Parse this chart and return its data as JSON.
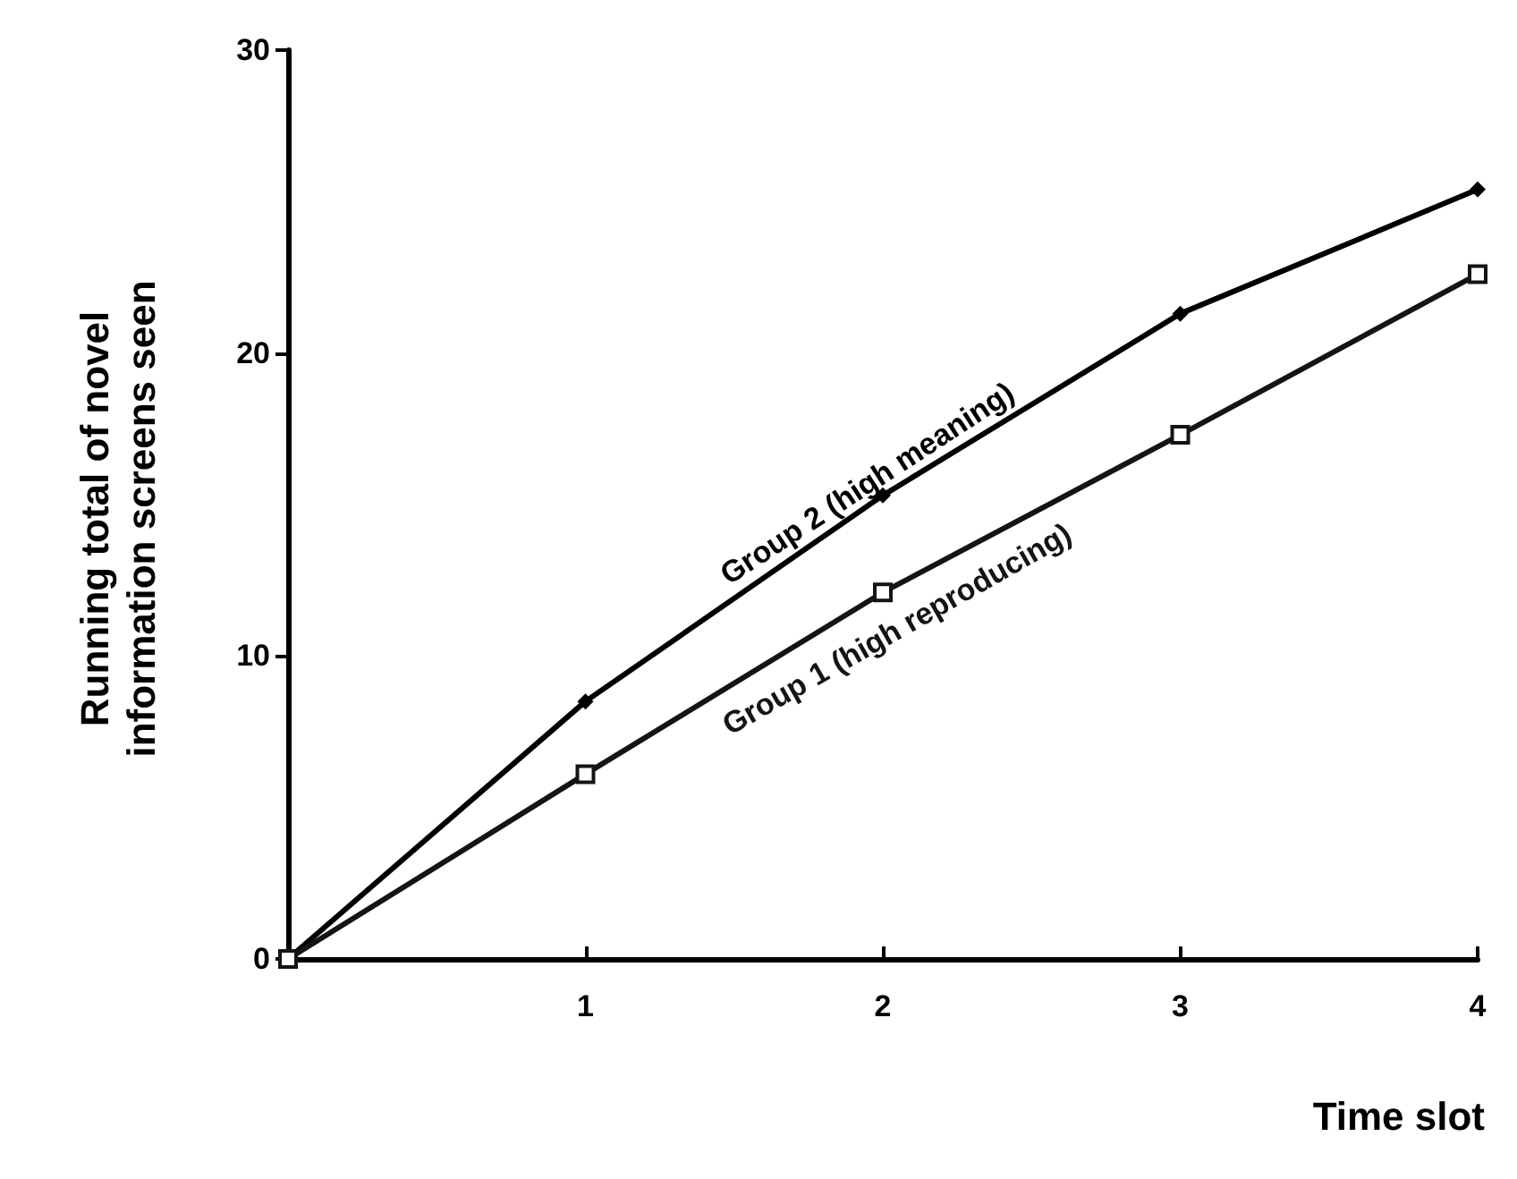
{
  "chart_data": {
    "type": "line",
    "xlabel": "Time slot",
    "ylabel": "Running total of novel\ninformation screens seen",
    "x": [
      0,
      1,
      2,
      3,
      4
    ],
    "series": [
      {
        "name": "Group 2 (high meaning)",
        "color": "#000000",
        "marker": "diamond",
        "values": [
          0,
          8.5,
          15.3,
          21.3,
          25.4
        ]
      },
      {
        "name": "Group 1 (high reproducing)",
        "color": "#141414",
        "marker": "square",
        "values": [
          0,
          6.1,
          12.1,
          17.3,
          22.6
        ]
      }
    ],
    "xlim": [
      0,
      4
    ],
    "xticks": [
      1,
      2,
      3,
      4
    ],
    "ylim": [
      0,
      30
    ],
    "yticks": [
      0,
      10,
      20,
      30
    ],
    "grid": false,
    "legend": false,
    "line_style": "solid"
  }
}
